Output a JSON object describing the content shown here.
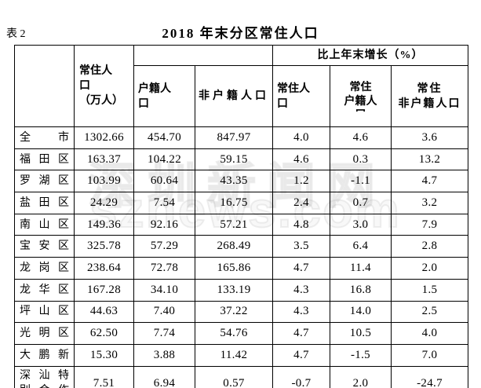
{
  "caption": {
    "label": "表 2",
    "title": "2018 年末分区常住人口"
  },
  "watermark": {
    "line1": "深圳新闻网",
    "line2": "sznews.com"
  },
  "table": {
    "header": {
      "resident_pop": "常住人\n口\n（万人）",
      "growth_group": "比上年末增长（%）",
      "hukou": "户籍人\n口",
      "non_hukou": "非户籍人口",
      "g_resident": "常住人\n口",
      "g_resident_hukou": "常住\n户籍人\n口",
      "g_resident_non_hukou": "常住\n非户籍人口"
    },
    "rows": [
      {
        "name": "全市",
        "values": [
          "1302.66",
          "454.70",
          "847.97",
          "4.0",
          "4.6",
          "3.6"
        ]
      },
      {
        "name": "福田区",
        "values": [
          "163.37",
          "104.22",
          "59.15",
          "4.6",
          "0.3",
          "13.2"
        ]
      },
      {
        "name": "罗湖区",
        "values": [
          "103.99",
          "60.64",
          "43.35",
          "1.2",
          "-1.1",
          "4.7"
        ]
      },
      {
        "name": "盐田区",
        "values": [
          "24.29",
          "7.54",
          "16.75",
          "2.4",
          "0.7",
          "3.2"
        ]
      },
      {
        "name": "南山区",
        "values": [
          "149.36",
          "92.16",
          "57.21",
          "4.8",
          "3.0",
          "7.9"
        ]
      },
      {
        "name": "宝安区",
        "values": [
          "325.78",
          "57.29",
          "268.49",
          "3.5",
          "6.4",
          "2.8"
        ]
      },
      {
        "name": "龙岗区",
        "values": [
          "238.64",
          "72.78",
          "165.86",
          "4.7",
          "11.4",
          "2.0"
        ]
      },
      {
        "name": "龙华区",
        "values": [
          "167.28",
          "34.10",
          "133.19",
          "4.3",
          "16.8",
          "1.5"
        ]
      },
      {
        "name": "坪山区",
        "values": [
          "44.63",
          "7.40",
          "37.22",
          "4.3",
          "14.0",
          "2.5"
        ]
      },
      {
        "name": "光明区",
        "values": [
          "62.50",
          "7.74",
          "54.76",
          "4.7",
          "10.5",
          "4.0"
        ]
      },
      {
        "name": "大鹏新",
        "values": [
          "15.30",
          "3.88",
          "11.42",
          "4.7",
          "-1.5",
          "7.0"
        ]
      },
      {
        "name": "深汕特\n别合作",
        "values": [
          "7.51",
          "6.94",
          "0.57",
          "-0.7",
          "2.0",
          "-24.7"
        ]
      }
    ]
  }
}
